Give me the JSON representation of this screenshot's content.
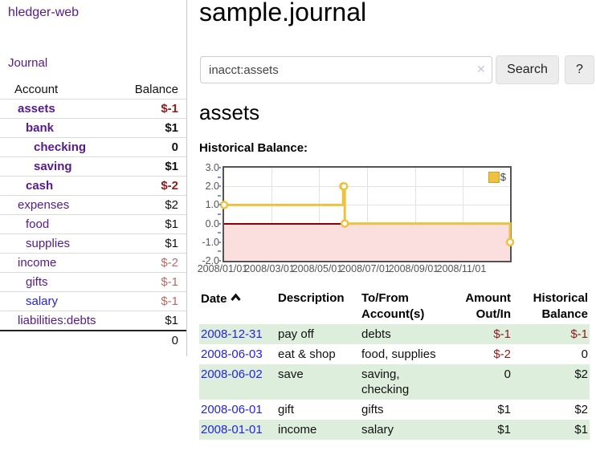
{
  "colors": {
    "purple_link": "#551a8b",
    "blue_link": "#2424dd",
    "negative_strong": "#8b1c1c",
    "negative_soft": "#b56b6b",
    "stripe_green": "#ddeedd",
    "chart_gold": "#edc240",
    "chart_pink": "#fbdede",
    "chart_zero_line": "#8b0000"
  },
  "sidebar": {
    "brand": "hledger-web",
    "journal_link": "Journal",
    "accounts": {
      "header_account": "Account",
      "header_balance": "Balance",
      "rows": [
        {
          "name": "assets",
          "balance": "$-1",
          "depth": 1,
          "bold": true,
          "balance_tone": "neg-strong"
        },
        {
          "name": "bank",
          "balance": "$1",
          "depth": 2,
          "bold": true,
          "balance_tone": ""
        },
        {
          "name": "checking",
          "balance": "0",
          "depth": 3,
          "bold": true,
          "balance_tone": ""
        },
        {
          "name": "saving",
          "balance": "$1",
          "depth": 3,
          "bold": true,
          "balance_tone": ""
        },
        {
          "name": "cash",
          "balance": "$-2",
          "depth": 2,
          "bold": true,
          "balance_tone": "neg-strong"
        },
        {
          "name": "expenses",
          "balance": "$2",
          "depth": 1,
          "bold": false,
          "balance_tone": ""
        },
        {
          "name": "food",
          "balance": "$1",
          "depth": 2,
          "bold": false,
          "balance_tone": ""
        },
        {
          "name": "supplies",
          "balance": "$1",
          "depth": 2,
          "bold": false,
          "balance_tone": ""
        },
        {
          "name": "income",
          "balance": "$-2",
          "depth": 1,
          "bold": false,
          "balance_tone": "neg-soft"
        },
        {
          "name": "gifts",
          "balance": "$-1",
          "depth": 2,
          "bold": false,
          "balance_tone": "neg-soft"
        },
        {
          "name": "salary",
          "balance": "$-1",
          "depth": 2,
          "bold": false,
          "balance_tone": "neg-soft",
          "blue": true
        },
        {
          "name": "liabilities:debts",
          "balance": "$1",
          "depth": 1,
          "bold": false,
          "balance_tone": ""
        }
      ],
      "total": "0"
    }
  },
  "main": {
    "title": "sample.journal",
    "search": {
      "value": "inacct:assets",
      "clear_icon": "✕",
      "search_button": "Search",
      "help_button": "?"
    },
    "account_heading": "assets",
    "chart_label": "Historical Balance:"
  },
  "chart_data": {
    "type": "line",
    "step": true,
    "title": "Historical Balance",
    "series": [
      {
        "name": "$",
        "color": "#edc240",
        "points": [
          [
            "2008-01-01",
            1.0
          ],
          [
            "2008-06-01",
            2.0
          ],
          [
            "2008-06-02",
            2.0
          ],
          [
            "2008-06-03",
            0.0
          ],
          [
            "2008-12-31",
            -1.0
          ]
        ]
      }
    ],
    "x_range": [
      "2008-01-01",
      "2008-12-31"
    ],
    "x_ticks": [
      "2008/01/01",
      "2008/03/01",
      "2008/05/01",
      "2008/07/01",
      "2008/09/01",
      "2008/11/01"
    ],
    "y_ticks": [
      "3.0",
      "2.0",
      "1.0",
      "0.0",
      "-1.0",
      "-2.0"
    ],
    "ylim": [
      -2,
      3
    ],
    "legend": "$",
    "legend_position": "top-right",
    "grid": true,
    "below_zero_shaded": true
  },
  "register": {
    "headers": {
      "date": "Date",
      "description": "Description",
      "tofrom": "To/From Account(s)",
      "amount": "Amount Out/In",
      "balance": "Historical Balance"
    },
    "rows": [
      {
        "date": "2008-12-31",
        "description": "pay off",
        "accounts": "debts",
        "amount": "$-1",
        "balance": "$-1",
        "amount_negative": true,
        "balance_negative": true
      },
      {
        "date": "2008-06-03",
        "description": "eat & shop",
        "accounts": "food, supplies",
        "amount": "$-2",
        "balance": "0",
        "amount_negative": true,
        "balance_negative": false
      },
      {
        "date": "2008-06-02",
        "description": "save",
        "accounts": "saving, checking",
        "amount": "0",
        "balance": "$2",
        "amount_negative": false,
        "balance_negative": false
      },
      {
        "date": "2008-06-01",
        "description": "gift",
        "accounts": "gifts",
        "amount": "$1",
        "balance": "$2",
        "amount_negative": false,
        "balance_negative": false
      },
      {
        "date": "2008-01-01",
        "description": "income",
        "accounts": "salary",
        "amount": "$1",
        "balance": "$1",
        "amount_negative": false,
        "balance_negative": false
      }
    ]
  }
}
